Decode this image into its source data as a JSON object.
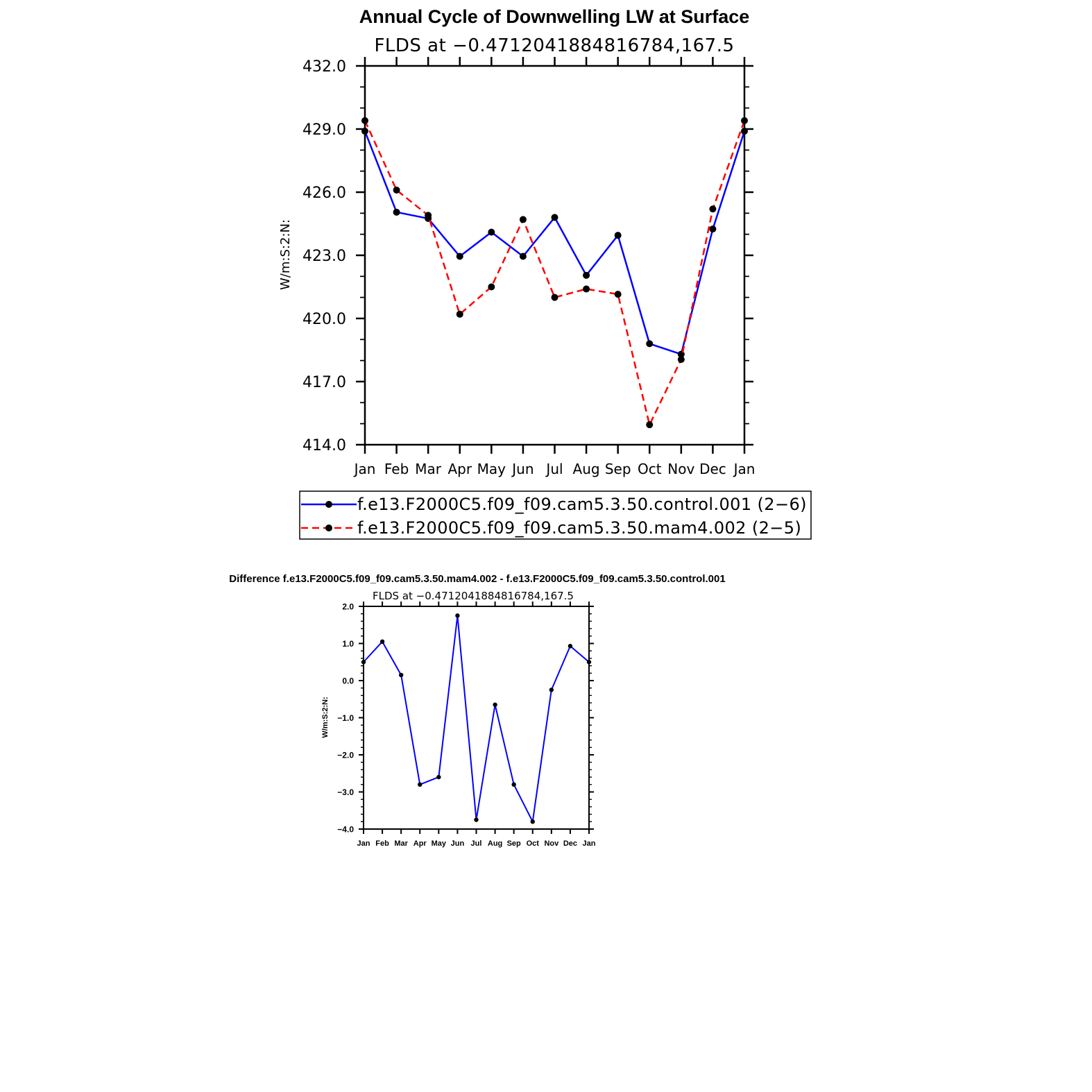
{
  "chart_data": [
    {
      "type": "line",
      "title": "Annual Cycle of Downwelling LW at Surface",
      "subtitle": "FLDS at −0.4712041884816784,167.5",
      "ylabel": "W/m:S:2:N:",
      "xlabel": "",
      "ylim": [
        414.0,
        432.0
      ],
      "yticks": [
        "414.0",
        "417.0",
        "420.0",
        "423.0",
        "426.0",
        "429.0",
        "432.0"
      ],
      "categories": [
        "Jan",
        "Feb",
        "Mar",
        "Apr",
        "May",
        "Jun",
        "Jul",
        "Aug",
        "Sep",
        "Oct",
        "Nov",
        "Dec",
        "Jan"
      ],
      "legend_position": "bottom",
      "series": [
        {
          "name": "f.e13.F2000C5.f09_f09.cam5.3.50.control.001 (2−6)",
          "color": "#0000ff",
          "dash": "solid",
          "values": [
            428.9,
            425.05,
            424.75,
            422.95,
            424.1,
            422.95,
            424.8,
            422.05,
            423.95,
            418.8,
            418.3,
            424.25,
            428.9
          ]
        },
        {
          "name": "f.e13.F2000C5.f09_f09.cam5.3.50.mam4.002 (2−5)",
          "color": "#ff0000",
          "dash": "dashed",
          "values": [
            429.4,
            426.1,
            424.9,
            420.2,
            421.5,
            424.7,
            421.0,
            421.4,
            421.15,
            414.95,
            418.05,
            425.2,
            429.4
          ]
        }
      ]
    },
    {
      "type": "line",
      "title": "Difference f.e13.F2000C5.f09_f09.cam5.3.50.mam4.002 - f.e13.F2000C5.f09_f09.cam5.3.50.control.001",
      "subtitle": "FLDS at −0.4712041884816784,167.5",
      "ylabel": "W/m:S:2:N:",
      "xlabel": "",
      "ylim": [
        -4.0,
        2.0
      ],
      "yticks": [
        "−4.0",
        "−3.0",
        "−2.0",
        "−1.0",
        "0.0",
        "1.0",
        "2.0"
      ],
      "categories": [
        "Jan",
        "Feb",
        "Mar",
        "Apr",
        "May",
        "Jun",
        "Jul",
        "Aug",
        "Sep",
        "Oct",
        "Nov",
        "Dec",
        "Jan"
      ],
      "series": [
        {
          "color": "#0000ff",
          "values": [
            0.5,
            1.05,
            0.15,
            -2.8,
            -2.6,
            1.75,
            -3.75,
            -0.65,
            -2.8,
            -3.8,
            -0.25,
            0.93,
            0.5
          ]
        }
      ]
    }
  ]
}
